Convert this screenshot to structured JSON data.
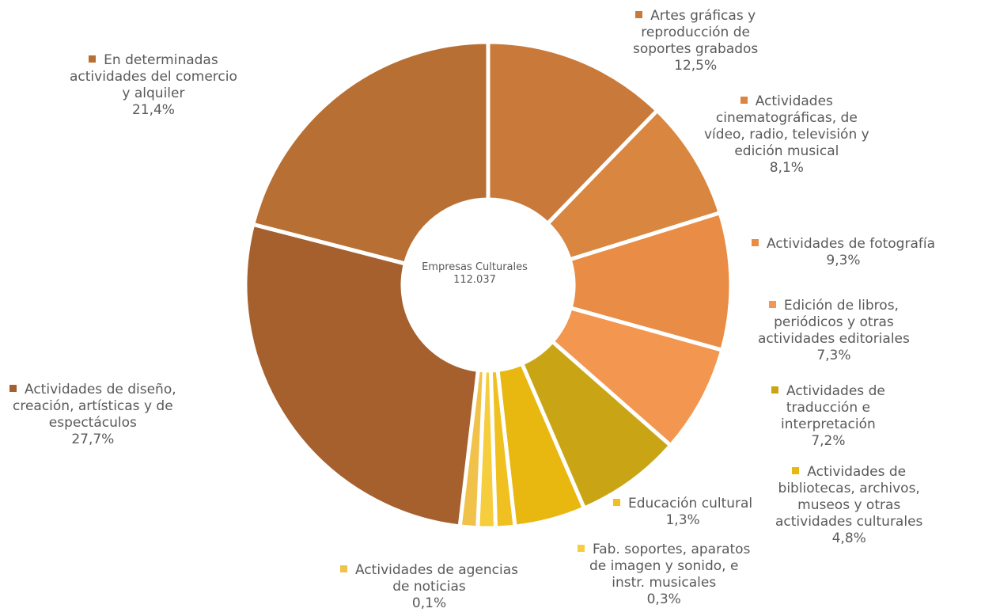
{
  "chart_data": {
    "type": "pie",
    "center_label": [
      "Empresas",
      "Culturales",
      "112.037"
    ],
    "slices": [
      {
        "lines": [
          "Artes gráficas y",
          "reproducción de",
          "soportes grabados"
        ],
        "value_label": "12,5%",
        "value": 12.5,
        "color": "#c97a3a"
      },
      {
        "lines": [
          "Actividades",
          "cinematográficas, de",
          "vídeo, radio, televisión y",
          "edición musical"
        ],
        "value_label": "8,1%",
        "value": 8.1,
        "color": "#d98640"
      },
      {
        "lines": [
          "Actividades de fotografía"
        ],
        "value_label": "9,3%",
        "value": 9.3,
        "color": "#e98c45"
      },
      {
        "lines": [
          "Edición de libros,",
          "periódicos y otras",
          "actividades editoriales"
        ],
        "value_label": "7,3%",
        "value": 7.3,
        "color": "#f39650"
      },
      {
        "lines": [
          "Actividades de",
          "traducción e",
          "interpretación"
        ],
        "value_label": "7,2%",
        "value": 7.2,
        "color": "#c9a516"
      },
      {
        "lines": [
          "Actividades de",
          "bibliotecas, archivos,",
          "museos y otras",
          "actividades culturales"
        ],
        "value_label": "4,8%",
        "value": 4.8,
        "color": "#e8b810"
      },
      {
        "lines": [
          "Educación cultural"
        ],
        "value_label": "1,3%",
        "value": 1.3,
        "color": "#f0c020"
      },
      {
        "lines": [
          "Fab. soportes, aparatos",
          "de imagen y sonido, e",
          "instr. musicales"
        ],
        "value_label": "0,3%",
        "value": 0.3,
        "color": "#f6cd3c"
      },
      {
        "lines": [
          "Actividades de agencias",
          "de noticias"
        ],
        "value_label": "0,1%",
        "value": 0.1,
        "color": "#f0c24a"
      },
      {
        "lines": [
          "Actividades de diseño,",
          "creación, artísticas y de",
          "espectáculos"
        ],
        "value_label": "27,7%",
        "value": 27.7,
        "color": "#a5602e"
      },
      {
        "lines": [
          "En determinadas",
          "actividades del comercio",
          "y alquiler"
        ],
        "value_label": "21,4%",
        "value": 21.4,
        "color": "#b86f33"
      }
    ]
  }
}
